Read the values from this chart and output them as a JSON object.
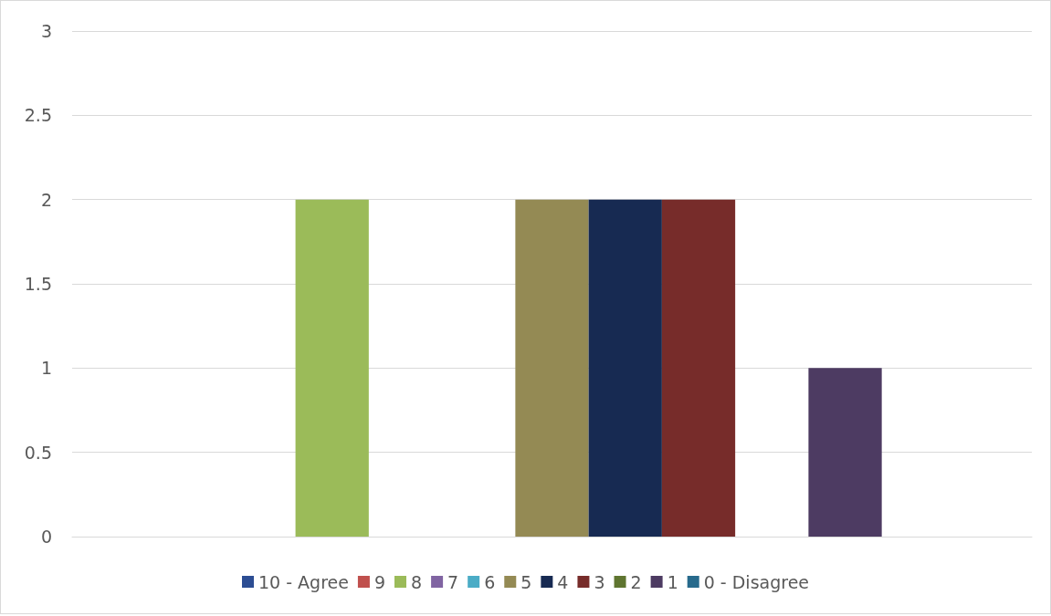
{
  "chart_data": {
    "type": "bar",
    "categories": [
      null
    ],
    "series": [
      {
        "name": "10 - Agree",
        "color": "#2c4d93",
        "values": [
          0
        ]
      },
      {
        "name": "9",
        "color": "#c0504d",
        "values": [
          0
        ]
      },
      {
        "name": "8",
        "color": "#9bbb59",
        "values": [
          2
        ]
      },
      {
        "name": "7",
        "color": "#8064a2",
        "values": [
          0
        ]
      },
      {
        "name": "6",
        "color": "#4bacc6",
        "values": [
          0
        ]
      },
      {
        "name": "5",
        "color": "#948a54",
        "values": [
          2
        ]
      },
      {
        "name": "4",
        "color": "#172a52",
        "values": [
          2
        ]
      },
      {
        "name": "3",
        "color": "#772c2a",
        "values": [
          2
        ]
      },
      {
        "name": "2",
        "color": "#5f7530",
        "values": [
          0
        ]
      },
      {
        "name": "1",
        "color": "#4d3b62",
        "values": [
          1
        ]
      },
      {
        "name": "0 - Disagree",
        "color": "#276a8c",
        "values": [
          0
        ]
      }
    ],
    "ylim": [
      0,
      3
    ],
    "yticks": [
      0,
      0.5,
      1,
      1.5,
      2,
      2.5,
      3
    ],
    "grid": "y",
    "legend": "bottom"
  }
}
